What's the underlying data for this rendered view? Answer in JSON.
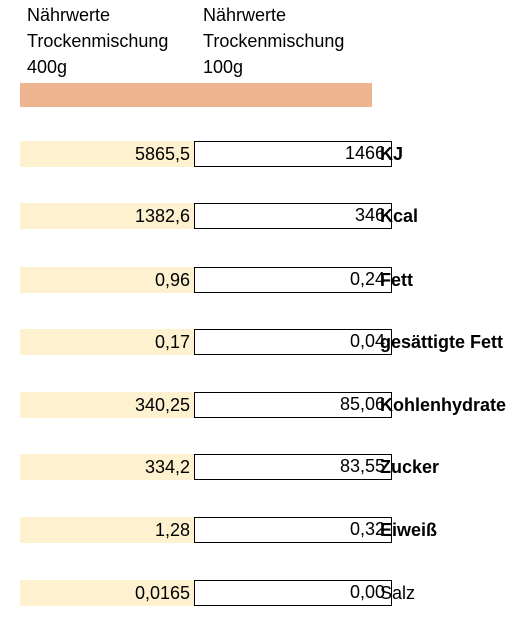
{
  "header": {
    "left": [
      "Nährwerte",
      "Trockenmischung",
      "400g"
    ],
    "right": [
      "Nährwerte",
      "Trockenmischung",
      "100g"
    ]
  },
  "colors": {
    "header_bar": "#eeb48f",
    "value_fill": "#fdf1cf"
  },
  "rows": [
    {
      "left": "5865,5",
      "right": "1466",
      "label": "KJ",
      "bold": true
    },
    {
      "left": "1382,6",
      "right": "346",
      "label": "Kcal",
      "bold": true
    },
    {
      "left": "0,96",
      "right": "0,24",
      "label": "Fett",
      "bold": true
    },
    {
      "left": "0,17",
      "right": "0,04",
      "label": "gesättigte Fett",
      "bold": true
    },
    {
      "left": "340,25",
      "right": "85,06",
      "label": "Kohlenhydrate",
      "bold": true
    },
    {
      "left": "334,2",
      "right": "83,55",
      "label": "Zucker",
      "bold": true
    },
    {
      "left": "1,28",
      "right": "0,32",
      "label": "Eiweiß",
      "bold": true
    },
    {
      "left": "0,0165",
      "right": "0,00",
      "label": "Salz",
      "bold": false
    }
  ]
}
